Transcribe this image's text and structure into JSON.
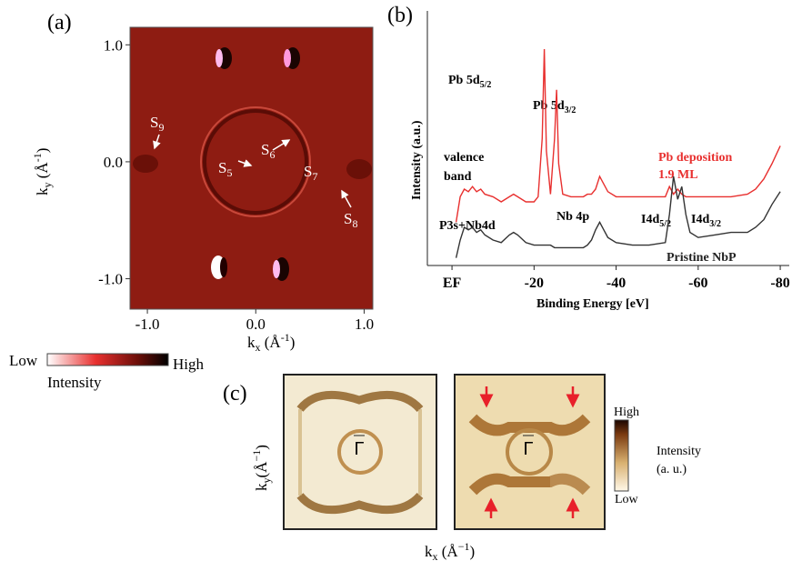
{
  "panel_labels": [
    "(a)",
    "(b)",
    "(c)"
  ],
  "chart_data": [
    {
      "type": "heatmap",
      "xlabel": [
        "k",
        "x",
        " (Å",
        "-1",
        ")"
      ],
      "ylabel": [
        "k",
        "y",
        " (Å",
        "-1",
        ")"
      ],
      "xlim": [
        -1.16,
        1.08
      ],
      "ylim": [
        -1.26,
        1.15
      ],
      "xticks": [
        {
          "value": -1,
          "label": "-1.0"
        },
        {
          "value": 0,
          "label": "0.0"
        },
        {
          "value": 1,
          "label": "1.0"
        }
      ],
      "yticks": [
        {
          "value": -1,
          "label": "-1.0"
        },
        {
          "value": 0,
          "label": "0.0"
        },
        {
          "value": 1,
          "label": "1.0"
        }
      ],
      "annotations": [
        [
          "S",
          "9"
        ],
        [
          "S",
          "6"
        ],
        [
          "S",
          "5"
        ],
        [
          "S",
          "7"
        ],
        [
          "S",
          "8"
        ]
      ],
      "colorbar": {
        "low": "Low",
        "high": "High",
        "label": "Intensity"
      }
    },
    {
      "type": "line",
      "ylabel": "Intensity (a.u.)",
      "xlabel": "Binding Energy [eV]",
      "xlim": [
        6,
        -82.2
      ],
      "ylim": [
        0,
        100
      ],
      "xticks": [
        {
          "value": 0,
          "label": "EF"
        },
        -20,
        -40,
        -60,
        -80
      ],
      "x": [
        -1,
        -2,
        -3,
        -4,
        -5,
        -6,
        -7,
        -8,
        -10,
        -12,
        -14,
        -15,
        -16,
        -18,
        -20,
        -21,
        -22,
        -22.5,
        -23,
        -24,
        -25,
        -25.5,
        -26,
        -27,
        -29,
        -32,
        -33,
        -34,
        -35,
        -36,
        -37,
        -38,
        -40,
        -44,
        -48,
        -52,
        -53,
        -54,
        -55,
        -56,
        -57,
        -58,
        -60,
        -64,
        -68,
        -72,
        -74,
        -76,
        -78,
        -80
      ],
      "series": [
        {
          "name": "Pb deposition",
          "color": "#e8302f",
          "values": [
            17,
            27,
            30,
            29,
            31,
            29,
            30,
            28,
            27,
            25,
            27,
            28,
            27,
            25,
            25,
            27,
            50,
            85,
            45,
            28,
            50,
            69,
            40,
            28,
            27,
            27,
            28,
            28,
            30,
            35,
            32,
            29,
            27,
            27,
            27,
            27,
            31,
            28,
            30,
            28,
            27,
            27,
            27,
            27,
            27,
            28,
            30,
            34,
            40,
            47
          ]
        },
        {
          "name": "Pristine NbP",
          "color": "#333333",
          "values": [
            3,
            10,
            15,
            14,
            15,
            13,
            14,
            12,
            10,
            9,
            12,
            13,
            12,
            9,
            8,
            8,
            8,
            8,
            8,
            8,
            7,
            7,
            7,
            7,
            7,
            7,
            8,
            10,
            14,
            17,
            14,
            11,
            9,
            8,
            8,
            9,
            20,
            35,
            26,
            31,
            20,
            13,
            11,
            12,
            13,
            13,
            15,
            18,
            24,
            29
          ]
        }
      ],
      "annotations": [
        [
          "Pb 5d",
          "5/2"
        ],
        [
          "Pb 5d",
          "3/2"
        ],
        [
          "valence"
        ],
        [
          "band"
        ],
        [
          "P3s+Nb4d"
        ],
        [
          "Nb 4p"
        ],
        [
          "I4d",
          "5/2"
        ],
        [
          "I4d",
          "3/2"
        ],
        [
          "1.9 ML"
        ]
      ]
    }
  ],
  "panel_c": {
    "gamma_labels": [
      "Γ",
      "Γ"
    ],
    "ylabel": [
      "k",
      "y",
      "(Å",
      "−1",
      ")"
    ],
    "xlabel": [
      "k",
      "x",
      " (Å",
      "−1",
      ")"
    ],
    "colorbar": {
      "high": "High",
      "low": "Low",
      "label": [
        "Intensity",
        "(a. u.)"
      ]
    }
  }
}
